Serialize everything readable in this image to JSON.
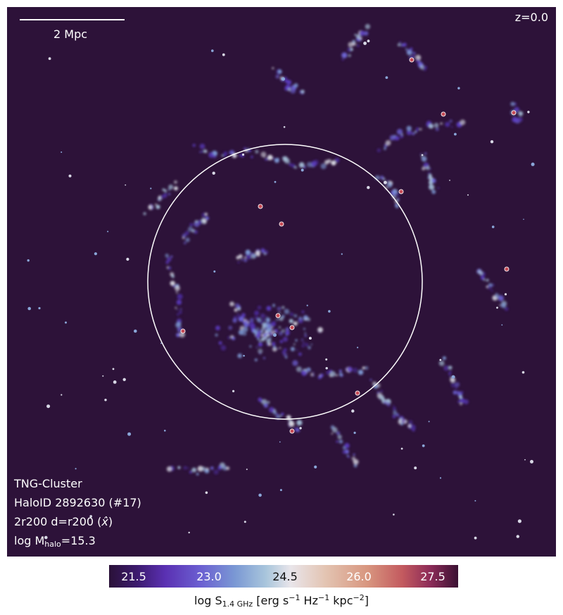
{
  "overlay": {
    "scalebar_label": "2 Mpc",
    "redshift": "z=0.0",
    "lines": {
      "sim": "TNG-Cluster",
      "halo": "HaloID 2892630 (#17)",
      "view": "2r200 d=r200 (",
      "view_symbol": "x̂",
      "view_end": ")",
      "mass_prefix": "log M",
      "mass_sub": "halo",
      "mass_value": "=15.3"
    }
  },
  "colorbar": {
    "ticks": [
      "21.5",
      "23.0",
      "24.5",
      "26.0",
      "27.5"
    ],
    "label_prefix": "log S",
    "label_sub": "1.4 GHz",
    "label_main": " [erg s",
    "exp1": "−1",
    "label_mid": " Hz",
    "exp2": "−1",
    "label_mid2": " kpc",
    "exp3": "−2",
    "label_end": "]",
    "colors": [
      "#2a1138",
      "#5a30b2",
      "#a9c6dc",
      "#e9e5ea",
      "#d8967f",
      "#8d2b58"
    ]
  },
  "map": {
    "background": "#2d1239",
    "r200_circle": "#ffffff"
  }
}
